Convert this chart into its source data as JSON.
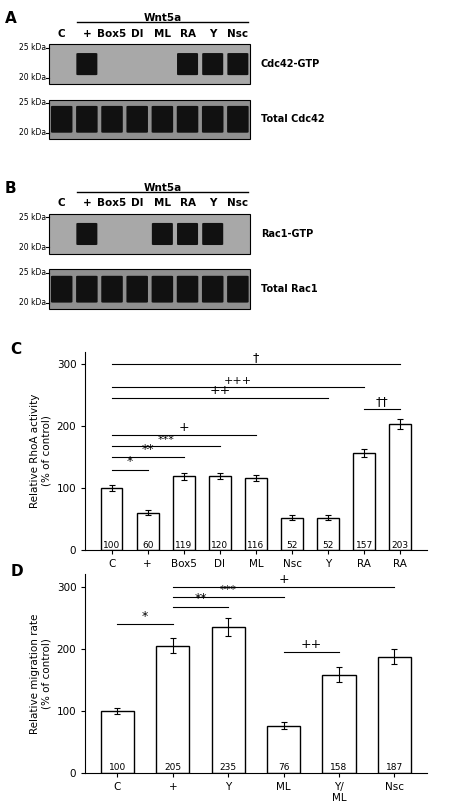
{
  "col_labels_A": [
    "C",
    "+",
    "Box5",
    "DI",
    "ML",
    "RA",
    "Y",
    "Nsc"
  ],
  "blot_bg_upper": "#a8a8a8",
  "blot_bg_lower": "#909090",
  "band_color_dark": "#111111",
  "band_color_mid": "#333333",
  "C_categories": [
    "C",
    "+",
    "Box5",
    "DI",
    "ML",
    "Nsc",
    "Y",
    "RA",
    "RA"
  ],
  "C_values": [
    100,
    60,
    119,
    120,
    116,
    52,
    52,
    157,
    203
  ],
  "C_errors": [
    5,
    4,
    6,
    5,
    5,
    4,
    4,
    7,
    8
  ],
  "C_ylabel": "Relative RhoA activity\n(% of control)",
  "C_ylim": [
    0,
    320
  ],
  "C_yticks": [
    0,
    100,
    200,
    300
  ],
  "D_categories": [
    "C",
    "+",
    "Y",
    "ML",
    "Y/\nML",
    "Nsc"
  ],
  "D_values": [
    100,
    205,
    235,
    76,
    158,
    187
  ],
  "D_errors": [
    5,
    12,
    15,
    6,
    12,
    12
  ],
  "D_ylabel": "Relative migration rate\n(% of control)",
  "D_ylim": [
    0,
    320
  ],
  "D_yticks": [
    0,
    100,
    200,
    300
  ],
  "bar_facecolor": "white",
  "bar_edgecolor": "black",
  "bar_linewidth": 1.0,
  "value_fontsize": 6.5,
  "label_fontsize": 7.5,
  "tick_fontsize": 7.5,
  "panel_label_fontsize": 11
}
